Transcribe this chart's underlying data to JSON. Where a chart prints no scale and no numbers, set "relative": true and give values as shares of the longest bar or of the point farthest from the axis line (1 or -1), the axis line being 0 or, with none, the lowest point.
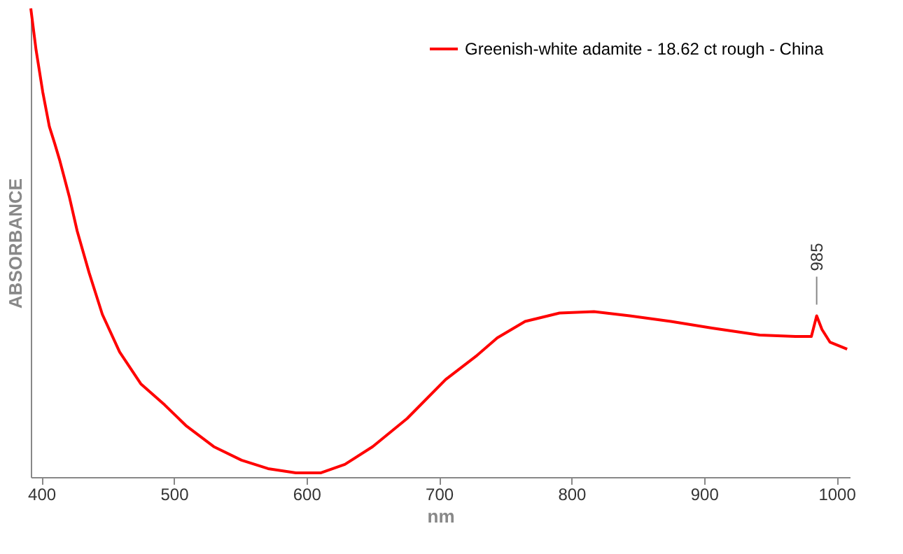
{
  "chart_data": {
    "type": "line",
    "relative": true,
    "xlabel": "nm",
    "ylabel": "ABSORBANCE",
    "x": [
      392,
      396,
      401,
      406,
      410,
      414,
      421,
      427,
      436,
      446,
      459,
      475,
      493,
      509,
      530,
      551,
      571,
      592,
      611,
      629,
      650,
      676,
      705,
      728,
      744,
      765,
      791,
      817,
      844,
      875,
      906,
      942,
      969,
      981,
      985,
      989,
      995,
      1008
    ],
    "series": [
      {
        "name": "Greenish-white adamite - 18.62 ct rough - China",
        "color": "#ff0000",
        "values": [
          1.0,
          0.911,
          0.822,
          0.748,
          0.712,
          0.674,
          0.599,
          0.525,
          0.436,
          0.347,
          0.267,
          0.199,
          0.154,
          0.11,
          0.065,
          0.036,
          0.018,
          0.009,
          0.009,
          0.027,
          0.065,
          0.125,
          0.208,
          0.258,
          0.297,
          0.332,
          0.35,
          0.353,
          0.344,
          0.332,
          0.318,
          0.303,
          0.3,
          0.3,
          0.344,
          0.315,
          0.288,
          0.273
        ]
      }
    ],
    "xlim": [
      392,
      1010
    ],
    "xticks": [
      400,
      500,
      600,
      700,
      800,
      900,
      1000
    ],
    "annotations": [
      {
        "text": "985",
        "x": 985,
        "y": 0.344
      }
    ],
    "legend": "top right",
    "grid": false,
    "marker": "none",
    "line_style": "solid"
  }
}
